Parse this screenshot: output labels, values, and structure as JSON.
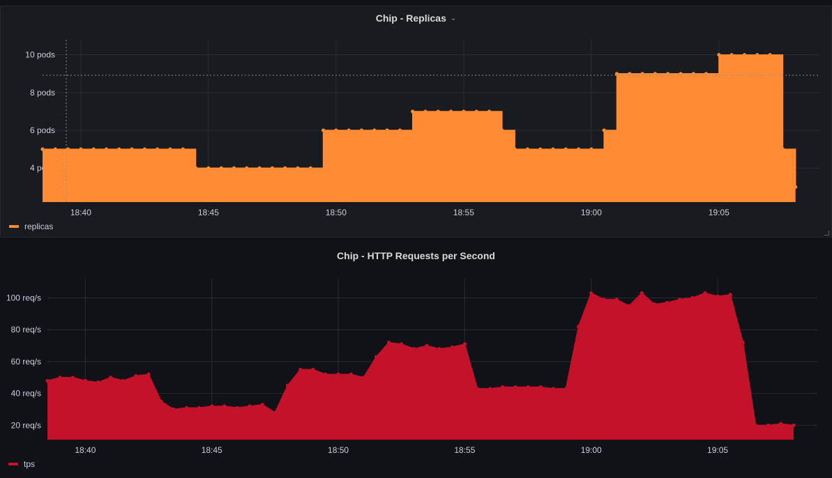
{
  "colors": {
    "replicas": "#ff8c35",
    "tps": "#c4122a",
    "grid": "#2a2c31"
  },
  "chart_data": [
    {
      "type": "area",
      "title": "Chip - Replicas",
      "y_unit": " pods",
      "ylim": [
        2.2,
        10.8
      ],
      "yticks": [
        4,
        6,
        8,
        10
      ],
      "ytick_labels": [
        "4 pods",
        "6 pods",
        "8 pods",
        "10 pods"
      ],
      "xlim": [
        "18:38:30",
        "19:08:30"
      ],
      "xticks": [
        "18:40",
        "18:45",
        "18:50",
        "18:55",
        "19:00",
        "19:05"
      ],
      "grid": true,
      "legend": "bottom-left",
      "step": true,
      "series": [
        {
          "name": "replicas",
          "x": [
            "18:38:30",
            "18:39:00",
            "18:39:30",
            "18:40:00",
            "18:40:30",
            "18:41:00",
            "18:41:30",
            "18:42:00",
            "18:42:30",
            "18:43:00",
            "18:43:30",
            "18:44:00",
            "18:44:30",
            "18:45:00",
            "18:45:30",
            "18:46:00",
            "18:46:30",
            "18:47:00",
            "18:47:30",
            "18:48:00",
            "18:48:30",
            "18:49:00",
            "18:49:30",
            "18:50:00",
            "18:50:30",
            "18:51:00",
            "18:51:30",
            "18:52:00",
            "18:52:30",
            "18:53:00",
            "18:53:30",
            "18:54:00",
            "18:54:30",
            "18:55:00",
            "18:55:30",
            "18:56:00",
            "18:56:30",
            "18:57:00",
            "18:57:30",
            "18:58:00",
            "18:58:30",
            "18:59:00",
            "18:59:30",
            "19:00:00",
            "19:00:30",
            "19:01:00",
            "19:01:30",
            "19:02:00",
            "19:02:30",
            "19:03:00",
            "19:03:30",
            "19:04:00",
            "19:04:30",
            "19:05:00",
            "19:05:30",
            "19:06:00",
            "19:06:30",
            "19:07:00",
            "19:07:30",
            "19:08:00"
          ],
          "values": [
            5,
            5,
            5,
            5,
            5,
            5,
            5,
            5,
            5,
            5,
            5,
            5,
            4,
            4,
            4,
            4,
            4,
            4,
            4,
            4,
            4,
            4,
            6,
            6,
            6,
            6,
            6,
            6,
            6,
            7,
            7,
            7,
            7,
            7,
            7,
            7,
            6,
            5,
            5,
            5,
            5,
            5,
            5,
            5,
            6,
            9,
            9,
            9,
            9,
            9,
            9,
            9,
            9,
            10,
            10,
            10,
            10,
            10,
            5,
            3
          ]
        }
      ]
    },
    {
      "type": "area",
      "title": "Chip - HTTP Requests per Second",
      "y_unit": " req/s",
      "ylim": [
        11,
        112
      ],
      "yticks": [
        20,
        40,
        60,
        80,
        100
      ],
      "ytick_labels": [
        "20 req/s",
        "40 req/s",
        "60 req/s",
        "80 req/s",
        "100 req/s"
      ],
      "xlim": [
        "18:38:30",
        "19:08:30"
      ],
      "xticks": [
        "18:40",
        "18:45",
        "18:50",
        "18:55",
        "19:00",
        "19:05"
      ],
      "grid": true,
      "legend": "bottom-left",
      "step": false,
      "series": [
        {
          "name": "tps",
          "x": [
            "18:38:30",
            "18:39:00",
            "18:39:30",
            "18:40:00",
            "18:40:30",
            "18:41:00",
            "18:41:30",
            "18:42:00",
            "18:42:30",
            "18:43:00",
            "18:43:30",
            "18:44:00",
            "18:44:30",
            "18:45:00",
            "18:45:30",
            "18:46:00",
            "18:46:30",
            "18:47:00",
            "18:47:30",
            "18:48:00",
            "18:48:30",
            "18:49:00",
            "18:49:30",
            "18:50:00",
            "18:50:30",
            "18:51:00",
            "18:51:30",
            "18:52:00",
            "18:52:30",
            "18:53:00",
            "18:53:30",
            "18:54:00",
            "18:54:30",
            "18:55:00",
            "18:55:30",
            "18:56:00",
            "18:56:30",
            "18:57:00",
            "18:57:30",
            "18:58:00",
            "18:58:30",
            "18:59:00",
            "18:59:30",
            "19:00:00",
            "19:00:30",
            "19:01:00",
            "19:01:30",
            "19:02:00",
            "19:02:30",
            "19:03:00",
            "19:03:30",
            "19:04:00",
            "19:04:30",
            "19:05:00",
            "19:05:30",
            "19:06:00",
            "19:06:30",
            "19:07:00",
            "19:07:30",
            "19:08:00"
          ],
          "values": [
            48,
            50,
            50,
            48,
            47,
            50,
            48,
            51,
            52,
            35,
            30,
            31,
            31,
            32,
            32,
            31,
            32,
            33,
            28,
            45,
            55,
            55,
            52,
            52,
            52,
            50,
            63,
            72,
            71,
            68,
            70,
            68,
            69,
            71,
            43,
            43,
            44,
            44,
            44,
            44,
            43,
            43,
            82,
            103,
            99,
            99,
            95,
            103,
            96,
            97,
            99,
            100,
            103,
            101,
            102,
            72,
            20,
            20,
            21,
            20
          ]
        }
      ]
    }
  ]
}
